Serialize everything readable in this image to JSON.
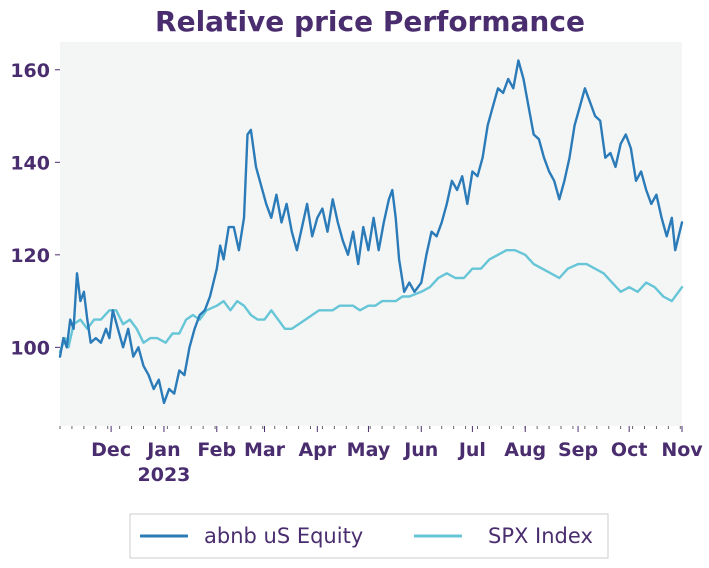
{
  "chart_data": {
    "type": "line",
    "title": "Relative price Performance",
    "xlabel": "",
    "ylabel": "",
    "ylim": [
      83,
      166
    ],
    "yticks": [
      100,
      120,
      140,
      160
    ],
    "x_tick_labels": [
      {
        "date": "2022-12-01",
        "label": "Dec",
        "sublabel": ""
      },
      {
        "date": "2023-01-01",
        "label": "Jan",
        "sublabel": "2023"
      },
      {
        "date": "2023-02-01",
        "label": "Feb",
        "sublabel": ""
      },
      {
        "date": "2023-03-01",
        "label": "Mar",
        "sublabel": ""
      },
      {
        "date": "2023-04-01",
        "label": "Apr",
        "sublabel": ""
      },
      {
        "date": "2023-05-01",
        "label": "May",
        "sublabel": ""
      },
      {
        "date": "2023-06-01",
        "label": "Jun",
        "sublabel": ""
      },
      {
        "date": "2023-07-01",
        "label": "Jul",
        "sublabel": ""
      },
      {
        "date": "2023-08-01",
        "label": "Aug",
        "sublabel": ""
      },
      {
        "date": "2023-09-01",
        "label": "Sep",
        "sublabel": ""
      },
      {
        "date": "2023-10-01",
        "label": "Oct",
        "sublabel": ""
      },
      {
        "date": "2023-11-01",
        "label": "Nov",
        "sublabel": ""
      }
    ],
    "xlim": [
      "2022-11-01",
      "2023-11-01"
    ],
    "grid": false,
    "legend": "bottom",
    "series": [
      {
        "name": "abnb uS Equity",
        "color": "#2b7bb9",
        "points": [
          [
            "2022-11-01",
            98
          ],
          [
            "2022-11-03",
            102
          ],
          [
            "2022-11-05",
            100
          ],
          [
            "2022-11-07",
            106
          ],
          [
            "2022-11-09",
            104
          ],
          [
            "2022-11-11",
            116
          ],
          [
            "2022-11-13",
            110
          ],
          [
            "2022-11-15",
            112
          ],
          [
            "2022-11-17",
            106
          ],
          [
            "2022-11-19",
            101
          ],
          [
            "2022-11-22",
            102
          ],
          [
            "2022-11-25",
            101
          ],
          [
            "2022-11-28",
            104
          ],
          [
            "2022-11-30",
            102
          ],
          [
            "2022-12-02",
            108
          ],
          [
            "2022-12-05",
            104
          ],
          [
            "2022-12-08",
            100
          ],
          [
            "2022-12-11",
            104
          ],
          [
            "2022-12-14",
            98
          ],
          [
            "2022-12-17",
            100
          ],
          [
            "2022-12-20",
            96
          ],
          [
            "2022-12-23",
            94
          ],
          [
            "2022-12-26",
            91
          ],
          [
            "2022-12-29",
            93
          ],
          [
            "2023-01-01",
            88
          ],
          [
            "2023-01-04",
            91
          ],
          [
            "2023-01-07",
            90
          ],
          [
            "2023-01-10",
            95
          ],
          [
            "2023-01-13",
            94
          ],
          [
            "2023-01-16",
            100
          ],
          [
            "2023-01-19",
            104
          ],
          [
            "2023-01-22",
            107
          ],
          [
            "2023-01-25",
            108
          ],
          [
            "2023-01-28",
            111
          ],
          [
            "2023-02-01",
            117
          ],
          [
            "2023-02-03",
            122
          ],
          [
            "2023-02-05",
            119
          ],
          [
            "2023-02-08",
            126
          ],
          [
            "2023-02-11",
            126
          ],
          [
            "2023-02-14",
            121
          ],
          [
            "2023-02-17",
            128
          ],
          [
            "2023-02-19",
            146
          ],
          [
            "2023-02-21",
            147
          ],
          [
            "2023-02-24",
            139
          ],
          [
            "2023-02-27",
            135
          ],
          [
            "2023-03-02",
            131
          ],
          [
            "2023-03-05",
            128
          ],
          [
            "2023-03-08",
            133
          ],
          [
            "2023-03-11",
            127
          ],
          [
            "2023-03-14",
            131
          ],
          [
            "2023-03-17",
            125
          ],
          [
            "2023-03-20",
            121
          ],
          [
            "2023-03-23",
            126
          ],
          [
            "2023-03-26",
            131
          ],
          [
            "2023-03-29",
            124
          ],
          [
            "2023-04-01",
            128
          ],
          [
            "2023-04-04",
            130
          ],
          [
            "2023-04-07",
            125
          ],
          [
            "2023-04-10",
            132
          ],
          [
            "2023-04-13",
            127
          ],
          [
            "2023-04-16",
            123
          ],
          [
            "2023-04-19",
            120
          ],
          [
            "2023-04-22",
            125
          ],
          [
            "2023-04-25",
            118
          ],
          [
            "2023-04-28",
            126
          ],
          [
            "2023-05-01",
            121
          ],
          [
            "2023-05-04",
            128
          ],
          [
            "2023-05-07",
            121
          ],
          [
            "2023-05-10",
            127
          ],
          [
            "2023-05-13",
            132
          ],
          [
            "2023-05-15",
            134
          ],
          [
            "2023-05-17",
            128
          ],
          [
            "2023-05-19",
            119
          ],
          [
            "2023-05-22",
            112
          ],
          [
            "2023-05-25",
            114
          ],
          [
            "2023-05-28",
            112
          ],
          [
            "2023-06-01",
            114
          ],
          [
            "2023-06-04",
            120
          ],
          [
            "2023-06-07",
            125
          ],
          [
            "2023-06-10",
            124
          ],
          [
            "2023-06-13",
            127
          ],
          [
            "2023-06-16",
            131
          ],
          [
            "2023-06-19",
            136
          ],
          [
            "2023-06-22",
            134
          ],
          [
            "2023-06-25",
            137
          ],
          [
            "2023-06-28",
            131
          ],
          [
            "2023-07-01",
            138
          ],
          [
            "2023-07-04",
            137
          ],
          [
            "2023-07-07",
            141
          ],
          [
            "2023-07-10",
            148
          ],
          [
            "2023-07-13",
            152
          ],
          [
            "2023-07-16",
            156
          ],
          [
            "2023-07-19",
            155
          ],
          [
            "2023-07-22",
            158
          ],
          [
            "2023-07-25",
            156
          ],
          [
            "2023-07-28",
            162
          ],
          [
            "2023-07-31",
            158
          ],
          [
            "2023-08-03",
            152
          ],
          [
            "2023-08-06",
            146
          ],
          [
            "2023-08-09",
            145
          ],
          [
            "2023-08-12",
            141
          ],
          [
            "2023-08-15",
            138
          ],
          [
            "2023-08-18",
            136
          ],
          [
            "2023-08-21",
            132
          ],
          [
            "2023-08-24",
            136
          ],
          [
            "2023-08-27",
            141
          ],
          [
            "2023-08-30",
            148
          ],
          [
            "2023-09-02",
            152
          ],
          [
            "2023-09-05",
            156
          ],
          [
            "2023-09-08",
            153
          ],
          [
            "2023-09-11",
            150
          ],
          [
            "2023-09-14",
            149
          ],
          [
            "2023-09-17",
            141
          ],
          [
            "2023-09-20",
            142
          ],
          [
            "2023-09-23",
            139
          ],
          [
            "2023-09-26",
            144
          ],
          [
            "2023-09-29",
            146
          ],
          [
            "2023-10-02",
            143
          ],
          [
            "2023-10-05",
            136
          ],
          [
            "2023-10-08",
            138
          ],
          [
            "2023-10-11",
            134
          ],
          [
            "2023-10-14",
            131
          ],
          [
            "2023-10-17",
            133
          ],
          [
            "2023-10-20",
            128
          ],
          [
            "2023-10-23",
            124
          ],
          [
            "2023-10-26",
            128
          ],
          [
            "2023-10-28",
            121
          ],
          [
            "2023-10-30",
            124
          ],
          [
            "2023-11-01",
            127
          ]
        ]
      },
      {
        "name": "SPX Index",
        "color": "#66c5d6",
        "points": [
          [
            "2022-11-01",
            99
          ],
          [
            "2022-11-04",
            102
          ],
          [
            "2022-11-06",
            100
          ],
          [
            "2022-11-09",
            105
          ],
          [
            "2022-11-13",
            106
          ],
          [
            "2022-11-17",
            104
          ],
          [
            "2022-11-21",
            106
          ],
          [
            "2022-11-25",
            106
          ],
          [
            "2022-11-30",
            108
          ],
          [
            "2022-12-04",
            108
          ],
          [
            "2022-12-08",
            105
          ],
          [
            "2022-12-12",
            106
          ],
          [
            "2022-12-16",
            104
          ],
          [
            "2022-12-20",
            101
          ],
          [
            "2022-12-24",
            102
          ],
          [
            "2022-12-28",
            102
          ],
          [
            "2023-01-02",
            101
          ],
          [
            "2023-01-06",
            103
          ],
          [
            "2023-01-10",
            103
          ],
          [
            "2023-01-14",
            106
          ],
          [
            "2023-01-18",
            107
          ],
          [
            "2023-01-22",
            106
          ],
          [
            "2023-01-26",
            108
          ],
          [
            "2023-02-01",
            109
          ],
          [
            "2023-02-05",
            110
          ],
          [
            "2023-02-09",
            108
          ],
          [
            "2023-02-13",
            110
          ],
          [
            "2023-02-17",
            109
          ],
          [
            "2023-02-21",
            107
          ],
          [
            "2023-02-25",
            106
          ],
          [
            "2023-03-01",
            106
          ],
          [
            "2023-03-05",
            108
          ],
          [
            "2023-03-09",
            106
          ],
          [
            "2023-03-13",
            104
          ],
          [
            "2023-03-17",
            104
          ],
          [
            "2023-03-21",
            105
          ],
          [
            "2023-03-25",
            106
          ],
          [
            "2023-03-29",
            107
          ],
          [
            "2023-04-02",
            108
          ],
          [
            "2023-04-06",
            108
          ],
          [
            "2023-04-10",
            108
          ],
          [
            "2023-04-14",
            109
          ],
          [
            "2023-04-18",
            109
          ],
          [
            "2023-04-22",
            109
          ],
          [
            "2023-04-26",
            108
          ],
          [
            "2023-05-01",
            109
          ],
          [
            "2023-05-05",
            109
          ],
          [
            "2023-05-09",
            110
          ],
          [
            "2023-05-13",
            110
          ],
          [
            "2023-05-17",
            110
          ],
          [
            "2023-05-21",
            111
          ],
          [
            "2023-05-25",
            111
          ],
          [
            "2023-06-01",
            112
          ],
          [
            "2023-06-06",
            113
          ],
          [
            "2023-06-11",
            115
          ],
          [
            "2023-06-16",
            116
          ],
          [
            "2023-06-21",
            115
          ],
          [
            "2023-06-26",
            115
          ],
          [
            "2023-07-01",
            117
          ],
          [
            "2023-07-06",
            117
          ],
          [
            "2023-07-11",
            119
          ],
          [
            "2023-07-16",
            120
          ],
          [
            "2023-07-21",
            121
          ],
          [
            "2023-07-26",
            121
          ],
          [
            "2023-08-01",
            120
          ],
          [
            "2023-08-06",
            118
          ],
          [
            "2023-08-11",
            117
          ],
          [
            "2023-08-16",
            116
          ],
          [
            "2023-08-21",
            115
          ],
          [
            "2023-08-26",
            117
          ],
          [
            "2023-09-01",
            118
          ],
          [
            "2023-09-06",
            118
          ],
          [
            "2023-09-11",
            117
          ],
          [
            "2023-09-16",
            116
          ],
          [
            "2023-09-21",
            114
          ],
          [
            "2023-09-26",
            112
          ],
          [
            "2023-10-01",
            113
          ],
          [
            "2023-10-06",
            112
          ],
          [
            "2023-10-11",
            114
          ],
          [
            "2023-10-16",
            113
          ],
          [
            "2023-10-21",
            111
          ],
          [
            "2023-10-26",
            110
          ],
          [
            "2023-11-01",
            113
          ]
        ]
      }
    ]
  }
}
